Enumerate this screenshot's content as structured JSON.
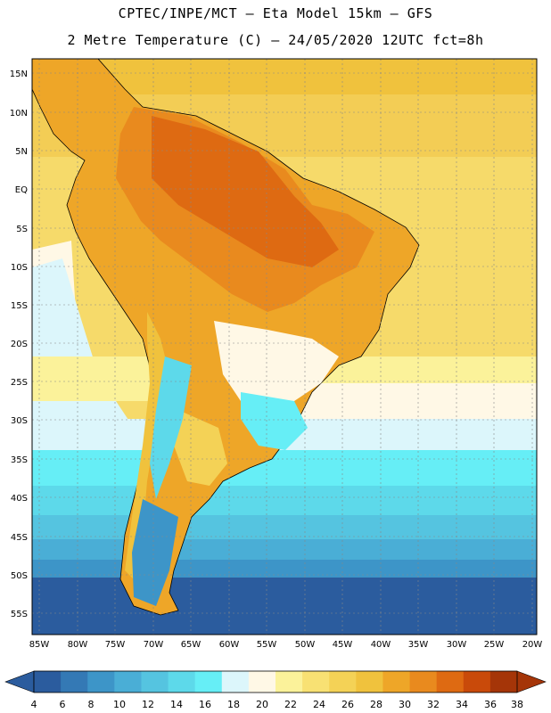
{
  "header": {
    "line1": "CPTEC/INPE/MCT –  Eta Model 15km – GFS",
    "line2": "2 Metre Temperature (C) – 24/05/2020 12UTC fct=8h"
  },
  "map": {
    "lat_labels": [
      "15N",
      "10N",
      "5N",
      "EQ",
      "5S",
      "10S",
      "15S",
      "20S",
      "25S",
      "30S",
      "35S",
      "40S",
      "45S",
      "50S",
      "55S"
    ],
    "lon_labels": [
      "85W",
      "80W",
      "75W",
      "70W",
      "65W",
      "60W",
      "55W",
      "50W",
      "45W",
      "40W",
      "35W",
      "30W",
      "25W",
      "20W"
    ]
  },
  "colorbar": {
    "labels": [
      "4",
      "6",
      "8",
      "10",
      "12",
      "14",
      "16",
      "18",
      "20",
      "22",
      "24",
      "26",
      "28",
      "30",
      "32",
      "34",
      "36",
      "38"
    ],
    "colors": [
      "#2b5c9e",
      "#3479b5",
      "#3d95c8",
      "#4aaed6",
      "#55c4e0",
      "#5dd9ea",
      "#66eef6",
      "#dcf6fb",
      "#fff8e6",
      "#fbf29a",
      "#f8e173",
      "#f4d256",
      "#f0c23d",
      "#eea628",
      "#e98a1e",
      "#de6a12",
      "#c94a0a",
      "#a53508"
    ]
  }
}
